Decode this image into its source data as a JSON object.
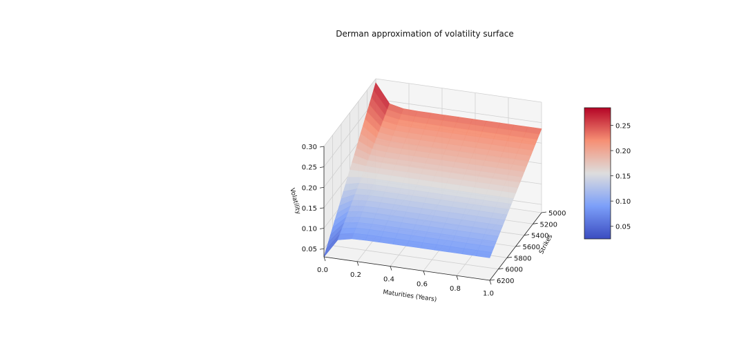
{
  "chart_data": {
    "type": "surface3d",
    "title": "Derman approximation of volatility surface",
    "xlabel": "Maturities (Years)",
    "ylabel": "Strikes",
    "zlabel": "Volatility",
    "x_ticks": [
      "0.0",
      "0.2",
      "0.4",
      "0.6",
      "0.8",
      "1.0"
    ],
    "y_ticks": [
      "5000",
      "5200",
      "5400",
      "5600",
      "5800",
      "6000",
      "6200"
    ],
    "z_ticks": [
      "0.05",
      "0.10",
      "0.15",
      "0.20",
      "0.25",
      "0.30"
    ],
    "xlim": [
      0,
      1
    ],
    "ylim": [
      5000,
      6200
    ],
    "zlim": [
      0.03,
      0.3
    ],
    "colormap": "coolwarm",
    "colorbar": {
      "min": 0.025,
      "max": 0.285,
      "ticks": [
        "0.05",
        "0.10",
        "0.15",
        "0.20",
        "0.25"
      ]
    },
    "grid": true,
    "maturities": [
      0.0,
      0.0833,
      0.1667,
      0.25,
      0.3333,
      0.4167,
      0.5,
      0.5833,
      0.6667,
      0.75,
      0.8333,
      0.9167,
      1.0
    ],
    "strikes": [
      5000,
      5050,
      5100,
      5150,
      5200,
      5250,
      5300,
      5350,
      5400,
      5450,
      5500,
      5550,
      5600,
      5650,
      5700,
      5750,
      5800,
      5850,
      5900,
      5950,
      6000,
      6050,
      6100,
      6150,
      6200
    ],
    "surface_description": "volatility decreases roughly linearly with strike, from about 0.235 at 5000 to about 0.085 at 6200 for longer maturities; the range widens sharply at very short maturities (about 0.29 to 0.03)"
  }
}
